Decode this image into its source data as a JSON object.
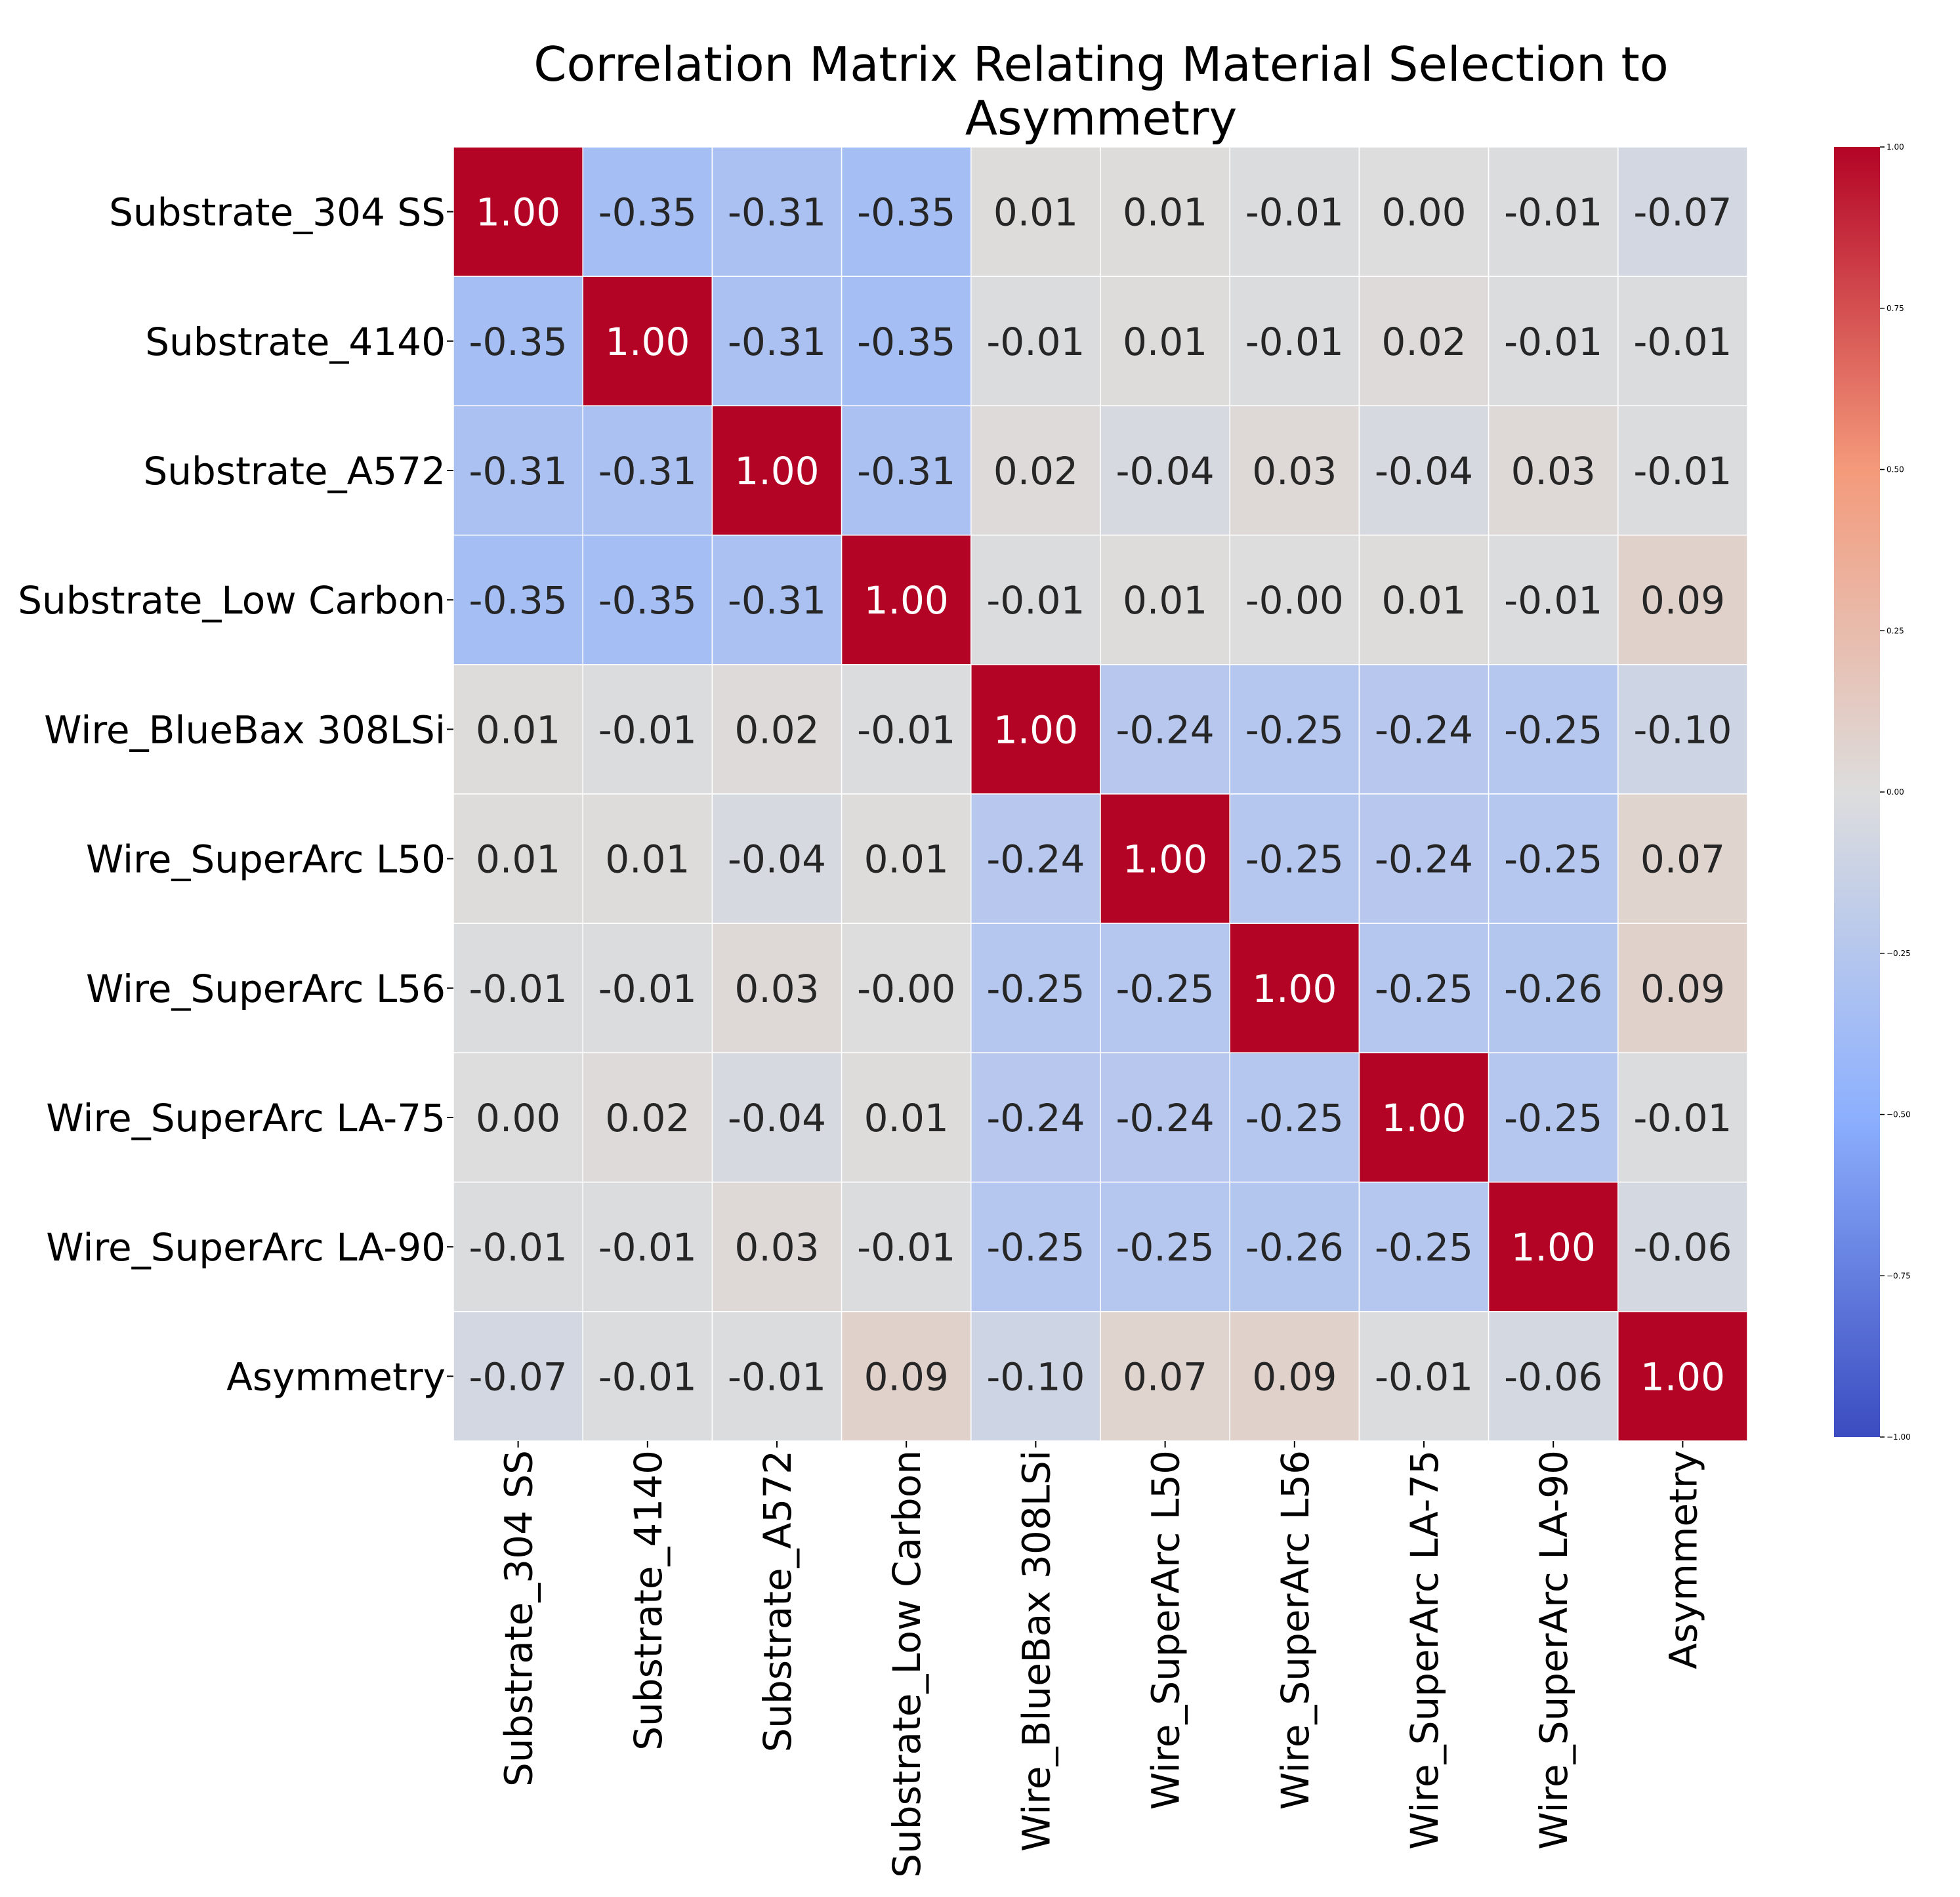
{
  "chart_data": {
    "type": "heatmap",
    "title_lines": [
      "Correlation Matrix Relating Material Selection to",
      "Asymmetry"
    ],
    "labels": [
      "Substrate_304 SS",
      "Substrate_4140",
      "Substrate_A572",
      "Substrate_Low Carbon",
      "Wire_BlueBax 308LSi",
      "Wire_SuperArc L50",
      "Wire_SuperArc L56",
      "Wire_SuperArc LA-75",
      "Wire_SuperArc LA-90",
      "Asymmetry"
    ],
    "values": [
      [
        1.0,
        -0.35,
        -0.31,
        -0.35,
        0.01,
        0.01,
        -0.01,
        0.0,
        -0.01,
        -0.07
      ],
      [
        -0.35,
        1.0,
        -0.31,
        -0.35,
        -0.01,
        0.01,
        -0.01,
        0.02,
        -0.01,
        -0.01
      ],
      [
        -0.31,
        -0.31,
        1.0,
        -0.31,
        0.02,
        -0.04,
        0.03,
        -0.04,
        0.03,
        -0.01
      ],
      [
        -0.35,
        -0.35,
        -0.31,
        1.0,
        -0.01,
        0.01,
        -0.0,
        0.01,
        -0.01,
        0.09
      ],
      [
        0.01,
        -0.01,
        0.02,
        -0.01,
        1.0,
        -0.24,
        -0.25,
        -0.24,
        -0.25,
        -0.1
      ],
      [
        0.01,
        0.01,
        -0.04,
        0.01,
        -0.24,
        1.0,
        -0.25,
        -0.24,
        -0.25,
        0.07
      ],
      [
        -0.01,
        -0.01,
        0.03,
        -0.0,
        -0.25,
        -0.25,
        1.0,
        -0.25,
        -0.26,
        0.09
      ],
      [
        0.0,
        0.02,
        -0.04,
        0.01,
        -0.24,
        -0.24,
        -0.25,
        1.0,
        -0.25,
        -0.01
      ],
      [
        -0.01,
        -0.01,
        0.03,
        -0.01,
        -0.25,
        -0.25,
        -0.26,
        -0.25,
        1.0,
        -0.06
      ],
      [
        -0.07,
        -0.01,
        -0.01,
        0.09,
        -0.1,
        0.07,
        0.09,
        -0.01,
        -0.06,
        1.0
      ]
    ],
    "cell_labels": [
      [
        "1.00",
        "-0.35",
        "-0.31",
        "-0.35",
        "0.01",
        "0.01",
        "-0.01",
        "0.00",
        "-0.01",
        "-0.07"
      ],
      [
        "-0.35",
        "1.00",
        "-0.31",
        "-0.35",
        "-0.01",
        "0.01",
        "-0.01",
        "0.02",
        "-0.01",
        "-0.01"
      ],
      [
        "-0.31",
        "-0.31",
        "1.00",
        "-0.31",
        "0.02",
        "-0.04",
        "0.03",
        "-0.04",
        "0.03",
        "-0.01"
      ],
      [
        "-0.35",
        "-0.35",
        "-0.31",
        "1.00",
        "-0.01",
        "0.01",
        "-0.00",
        "0.01",
        "-0.01",
        "0.09"
      ],
      [
        "0.01",
        "-0.01",
        "0.02",
        "-0.01",
        "1.00",
        "-0.24",
        "-0.25",
        "-0.24",
        "-0.25",
        "-0.10"
      ],
      [
        "0.01",
        "0.01",
        "-0.04",
        "0.01",
        "-0.24",
        "1.00",
        "-0.25",
        "-0.24",
        "-0.25",
        "0.07"
      ],
      [
        "-0.01",
        "-0.01",
        "0.03",
        "-0.00",
        "-0.25",
        "-0.25",
        "1.00",
        "-0.25",
        "-0.26",
        "0.09"
      ],
      [
        "0.00",
        "0.02",
        "-0.04",
        "0.01",
        "-0.24",
        "-0.24",
        "-0.25",
        "1.00",
        "-0.25",
        "-0.01"
      ],
      [
        "-0.01",
        "-0.01",
        "0.03",
        "-0.01",
        "-0.25",
        "-0.25",
        "-0.26",
        "-0.25",
        "1.00",
        "-0.06"
      ],
      [
        "-0.07",
        "-0.01",
        "-0.01",
        "0.09",
        "-0.10",
        "0.07",
        "0.09",
        "-0.01",
        "-0.06",
        "1.00"
      ]
    ],
    "colormap": "coolwarm",
    "colormap_stops": [
      "#3b4cc0",
      "#8db0fe",
      "#dddddd",
      "#f49a7b",
      "#b40426"
    ],
    "vmin": -1.0,
    "vmax": 1.0,
    "colorbar_ticks": [
      1.0,
      0.75,
      0.5,
      0.25,
      0.0,
      -0.25,
      -0.5,
      -0.75,
      -1.0
    ],
    "colorbar_tick_labels": [
      "1.00",
      "0.75",
      "0.50",
      "0.25",
      "0.00",
      "−0.25",
      "−0.50",
      "−0.75",
      "−1.00"
    ],
    "xtick_rotation": "vertical",
    "grid_lines_color": "#ffffff",
    "legend": "colorbar-right"
  }
}
